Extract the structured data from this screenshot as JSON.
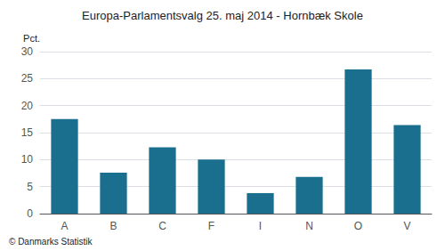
{
  "chart_data": {
    "type": "bar",
    "title": "Europa-Parlamentsvalg 25. maj 2014 - Hornbæk Skole",
    "categories": [
      "A",
      "B",
      "C",
      "F",
      "I",
      "N",
      "O",
      "V"
    ],
    "values": [
      17.5,
      7.6,
      12.3,
      10.0,
      3.8,
      6.8,
      26.7,
      16.4
    ],
    "color": "#1a6e8e",
    "ylabel": "Pct.",
    "ylim": [
      0,
      30
    ],
    "yticks": [
      0,
      5,
      10,
      15,
      20,
      25,
      30
    ],
    "grid": true,
    "footer": "© Danmarks Statistik"
  }
}
